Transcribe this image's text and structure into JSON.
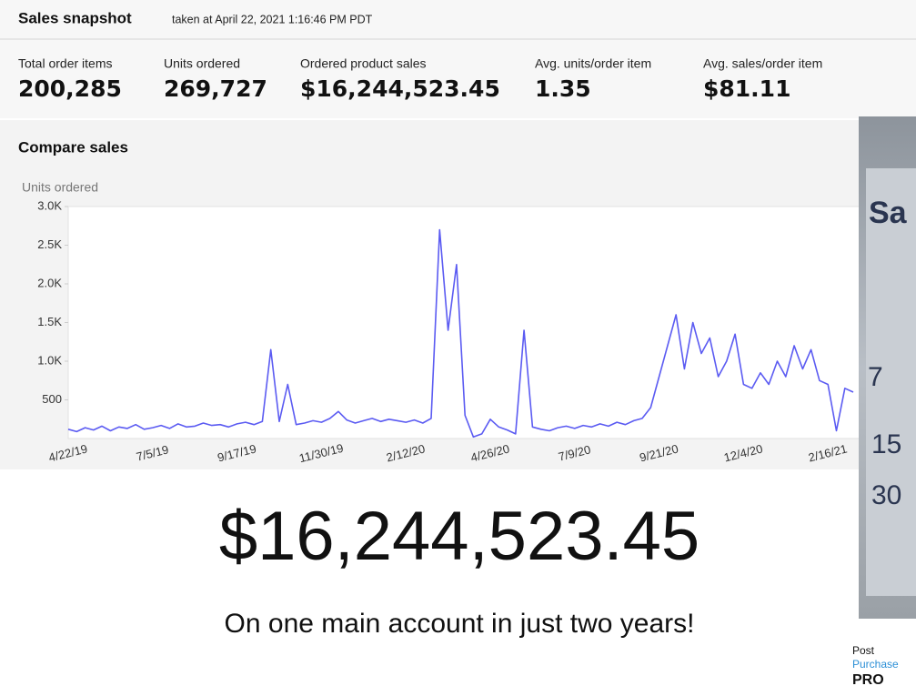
{
  "header": {
    "title": "Sales snapshot",
    "subtitle": "taken at April 22, 2021 1:16:46 PM PDT"
  },
  "metrics": [
    {
      "label": "Total order items",
      "value": "200,285"
    },
    {
      "label": "Units ordered",
      "value": "269,727"
    },
    {
      "label": "Ordered product sales",
      "value": "$16,244,523.45"
    },
    {
      "label": "Avg. units/order item",
      "value": "1.35"
    },
    {
      "label": "Avg. sales/order item",
      "value": "$81.11"
    }
  ],
  "chart_data": {
    "type": "line",
    "title": "Compare sales",
    "y_label": "Units ordered",
    "color": "#5b5bf2",
    "categories": [
      "4/22/19",
      null,
      null,
      null,
      null,
      null,
      null,
      null,
      null,
      null,
      "7/5/19",
      null,
      null,
      null,
      null,
      null,
      null,
      null,
      null,
      null,
      "9/17/19",
      null,
      null,
      null,
      null,
      null,
      null,
      null,
      null,
      null,
      "11/30/19",
      null,
      null,
      null,
      null,
      null,
      null,
      null,
      null,
      null,
      "2/12/20",
      null,
      null,
      null,
      null,
      null,
      null,
      null,
      null,
      null,
      "4/26/20",
      null,
      null,
      null,
      null,
      null,
      null,
      null,
      null,
      null,
      "7/9/20",
      null,
      null,
      null,
      null,
      null,
      null,
      null,
      null,
      null,
      "9/21/20",
      null,
      null,
      null,
      null,
      null,
      null,
      null,
      null,
      null,
      "12/4/20",
      null,
      null,
      null,
      null,
      null,
      null,
      null,
      null,
      null,
      "2/16/21",
      null,
      null,
      null
    ],
    "values": [
      120,
      90,
      140,
      110,
      160,
      100,
      150,
      130,
      180,
      120,
      140,
      170,
      130,
      190,
      150,
      160,
      200,
      170,
      180,
      150,
      190,
      210,
      180,
      220,
      1150,
      220,
      700,
      180,
      200,
      230,
      210,
      260,
      350,
      240,
      200,
      230,
      260,
      220,
      250,
      230,
      210,
      240,
      200,
      260,
      2700,
      1400,
      2250,
      300,
      20,
      60,
      250,
      150,
      110,
      60,
      1400,
      150,
      120,
      100,
      140,
      160,
      130,
      170,
      150,
      190,
      160,
      210,
      180,
      230,
      260,
      400,
      800,
      1200,
      1600,
      900,
      1500,
      1100,
      1300,
      800,
      1000,
      1350,
      700,
      650,
      850,
      700,
      1000,
      800,
      1200,
      900,
      1150,
      750,
      700,
      100,
      650,
      600
    ],
    "ylim": [
      0,
      3000
    ],
    "yticks": [
      500,
      {
        "value": 1000,
        "label": "1.0K"
      },
      {
        "value": 1500,
        "label": "1.5K"
      },
      {
        "value": 2000,
        "label": "2.0K"
      },
      {
        "value": 2500,
        "label": "2.5K"
      },
      {
        "value": 3000,
        "label": "3.0K"
      }
    ]
  },
  "headline": "$16,244,523.45",
  "tagline": "On one main account in just two years!",
  "overlay": {
    "texts": [
      "Sa",
      "7",
      "15",
      "30"
    ]
  },
  "logo": {
    "line1": "Post",
    "line2": "Purchase",
    "line3": "PRO"
  }
}
